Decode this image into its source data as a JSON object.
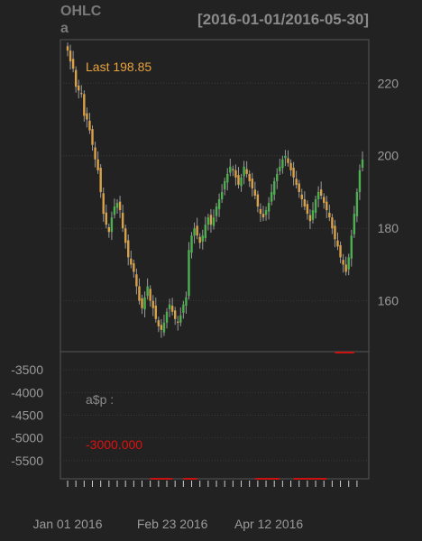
{
  "chart_data": {
    "type": "candlestick",
    "title_line1": "OHLC",
    "title_line2": "a",
    "date_range": "[2016-01-01/2016-05-30]",
    "last_label": "Last 198.85",
    "price_ylim": [
      146,
      232
    ],
    "price_yticks": [
      160,
      180,
      200,
      220
    ],
    "indicator_label": "a$p :",
    "indicator_value": "-3000.000",
    "indicator_ylim": [
      -5900,
      -3100
    ],
    "indicator_yticks": [
      -3500,
      -4000,
      -4500,
      -5000,
      -5500
    ],
    "x_labels": [
      {
        "label": "Jan 01 2016",
        "index": 0
      },
      {
        "label": "Feb 23 2016",
        "index": 38
      },
      {
        "label": "Apr 12 2016",
        "index": 73
      }
    ],
    "n_days": 108,
    "colors": {
      "up": "#4caf50",
      "down": "#d9a24a",
      "wick": "#9a9a9a",
      "last": "#e8a33d",
      "indicator": "#cc1111"
    },
    "close": [
      229,
      226,
      224,
      219,
      218,
      217,
      211,
      210,
      207,
      203,
      199,
      196,
      190,
      184,
      181,
      179,
      183,
      186,
      187,
      185,
      180,
      176,
      172,
      170,
      168,
      164,
      160,
      158,
      161,
      164,
      160,
      158,
      155,
      153,
      152,
      154,
      157,
      159,
      157,
      155,
      154,
      156,
      159,
      161,
      174,
      178,
      180,
      178,
      176,
      178,
      181,
      183,
      181,
      183,
      186,
      188,
      190,
      193,
      195,
      197,
      196,
      194,
      192,
      194,
      197,
      195,
      193,
      191,
      189,
      186,
      184,
      183,
      185,
      187,
      190,
      193,
      195,
      197,
      199,
      200,
      198,
      196,
      194,
      192,
      190,
      188,
      186,
      184,
      182,
      185,
      188,
      190,
      189,
      187,
      185,
      183,
      180,
      177,
      175,
      172,
      170,
      168,
      172,
      178,
      184,
      190,
      196,
      199
    ]
  }
}
